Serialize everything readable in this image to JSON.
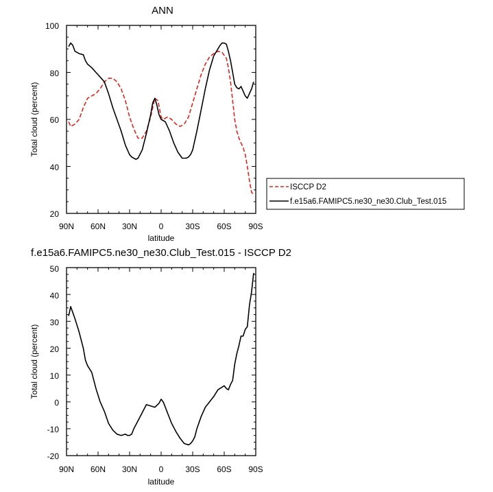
{
  "chart_data": [
    {
      "type": "line",
      "title": "ANN",
      "xlabel": "latitude",
      "ylabel": "Total cloud (percent)",
      "xlim": [
        -90,
        90
      ],
      "ylim": [
        20,
        100
      ],
      "x_direction": "north-to-south",
      "x_ticks": [
        90,
        60,
        30,
        0,
        -30,
        -60,
        -90
      ],
      "x_tick_labels": [
        "90N",
        "60N",
        "30N",
        "0",
        "30S",
        "60S",
        "90S"
      ],
      "y_ticks": [
        20,
        40,
        60,
        80,
        100
      ],
      "y_tick_labels": [
        "20",
        "40",
        "60",
        "80",
        "100"
      ],
      "grid": false,
      "legend_position": "right",
      "series": [
        {
          "name": "ISCCP D2",
          "color": "#e0241b",
          "dash": "dashed",
          "x": [
            88,
            86,
            82,
            78,
            74,
            70,
            66,
            62,
            58,
            54,
            50,
            46,
            42,
            38,
            34,
            30,
            26,
            22,
            18,
            14,
            10,
            6,
            3,
            0,
            -2,
            -6,
            -10,
            -14,
            -18,
            -22,
            -26,
            -30,
            -34,
            -38,
            -42,
            -46,
            -50,
            -54,
            -58,
            -62,
            -64,
            -66,
            -68,
            -70,
            -72,
            -74,
            -76,
            -78,
            -80,
            -82,
            -84,
            -86,
            -88
          ],
          "values": [
            59,
            57,
            58,
            60,
            65,
            69,
            70,
            71,
            73,
            76,
            77.5,
            77.5,
            76,
            73,
            68,
            61,
            56,
            52,
            52,
            55,
            61,
            69,
            68,
            61,
            60,
            61,
            60,
            58,
            57,
            58,
            61,
            67,
            73,
            79,
            83.5,
            86.5,
            88,
            89,
            88.5,
            86,
            82,
            76,
            68,
            60,
            55,
            52,
            50,
            48,
            45,
            40,
            34,
            29,
            28
          ]
        },
        {
          "name": "f.e15a6.FAMIPC5.ne30_ne30.Club_Test.015",
          "color": "#000000",
          "dash": "solid",
          "x": [
            88,
            86,
            84,
            82,
            78,
            74,
            72,
            70,
            66,
            62,
            58,
            54,
            50,
            46,
            42,
            38,
            34,
            30,
            28,
            26,
            24,
            22,
            18,
            14,
            10,
            8,
            6,
            4,
            2,
            0,
            -4,
            -8,
            -12,
            -16,
            -20,
            -24,
            -26,
            -28,
            -30,
            -34,
            -38,
            -42,
            -46,
            -50,
            -54,
            -56,
            -58,
            -60,
            -62,
            -64,
            -66,
            -68,
            -70,
            -72,
            -74,
            -76,
            -78,
            -80,
            -82,
            -84,
            -86,
            -88
          ],
          "values": [
            91,
            92.5,
            91.5,
            89,
            88,
            87.5,
            85,
            83.5,
            82,
            80,
            78,
            76,
            71,
            65,
            60,
            55,
            49,
            45,
            44,
            43.5,
            43,
            43.5,
            47,
            54,
            62,
            67,
            69,
            66,
            62,
            60,
            59,
            55,
            50,
            46,
            43.5,
            43.5,
            44,
            45,
            47,
            55,
            64,
            73,
            81,
            87,
            90,
            91.5,
            92.5,
            92.5,
            92,
            89,
            85,
            80,
            75,
            73.5,
            73,
            74,
            72,
            70,
            69,
            71,
            73,
            76
          ]
        }
      ]
    },
    {
      "type": "line",
      "title": "f.e15a6.FAMIPC5.ne30_ne30.Club_Test.015 - ISCCP D2",
      "xlabel": "latitude",
      "ylabel": "Total cloud (percent)",
      "xlim": [
        -90,
        90
      ],
      "ylim": [
        -20,
        50
      ],
      "x_direction": "north-to-south",
      "x_ticks": [
        90,
        60,
        30,
        0,
        -30,
        -60,
        -90
      ],
      "x_tick_labels": [
        "90N",
        "60N",
        "30N",
        "0",
        "30S",
        "60S",
        "90S"
      ],
      "y_ticks": [
        -20,
        -10,
        0,
        10,
        20,
        30,
        40,
        50
      ],
      "y_tick_labels": [
        "-20",
        "-10",
        "0",
        "10",
        "20",
        "30",
        "40",
        "50"
      ],
      "grid": false,
      "series": [
        {
          "color": "#000000",
          "dash": "solid",
          "x": [
            88,
            86,
            82,
            78,
            74,
            72,
            70,
            66,
            62,
            58,
            54,
            50,
            46,
            42,
            38,
            34,
            32,
            30,
            28,
            26,
            24,
            22,
            18,
            14,
            10,
            6,
            2,
            0,
            -2,
            -6,
            -10,
            -14,
            -18,
            -22,
            -26,
            -28,
            -30,
            -32,
            -34,
            -38,
            -42,
            -46,
            -50,
            -54,
            -58,
            -60,
            -62,
            -64,
            -66,
            -68,
            -70,
            -72,
            -74,
            -76,
            -78,
            -80,
            -82,
            -84,
            -86,
            -88
          ],
          "values": [
            32,
            35.5,
            31,
            26,
            20,
            15.5,
            13.5,
            11,
            5,
            0,
            -3.5,
            -8,
            -10.5,
            -12,
            -12.5,
            -12,
            -12.5,
            -12.5,
            -12,
            -10,
            -8.5,
            -7,
            -4,
            -1,
            -1.5,
            -2,
            -0.5,
            1,
            0,
            -4,
            -8,
            -11,
            -13.5,
            -15.5,
            -16,
            -15.5,
            -14.5,
            -13,
            -10,
            -5.5,
            -2,
            0,
            2,
            4.5,
            5.5,
            6,
            5,
            4.5,
            6.5,
            8,
            14,
            18,
            21,
            24.5,
            24.5,
            27,
            28,
            36,
            41,
            48
          ]
        }
      ]
    }
  ]
}
